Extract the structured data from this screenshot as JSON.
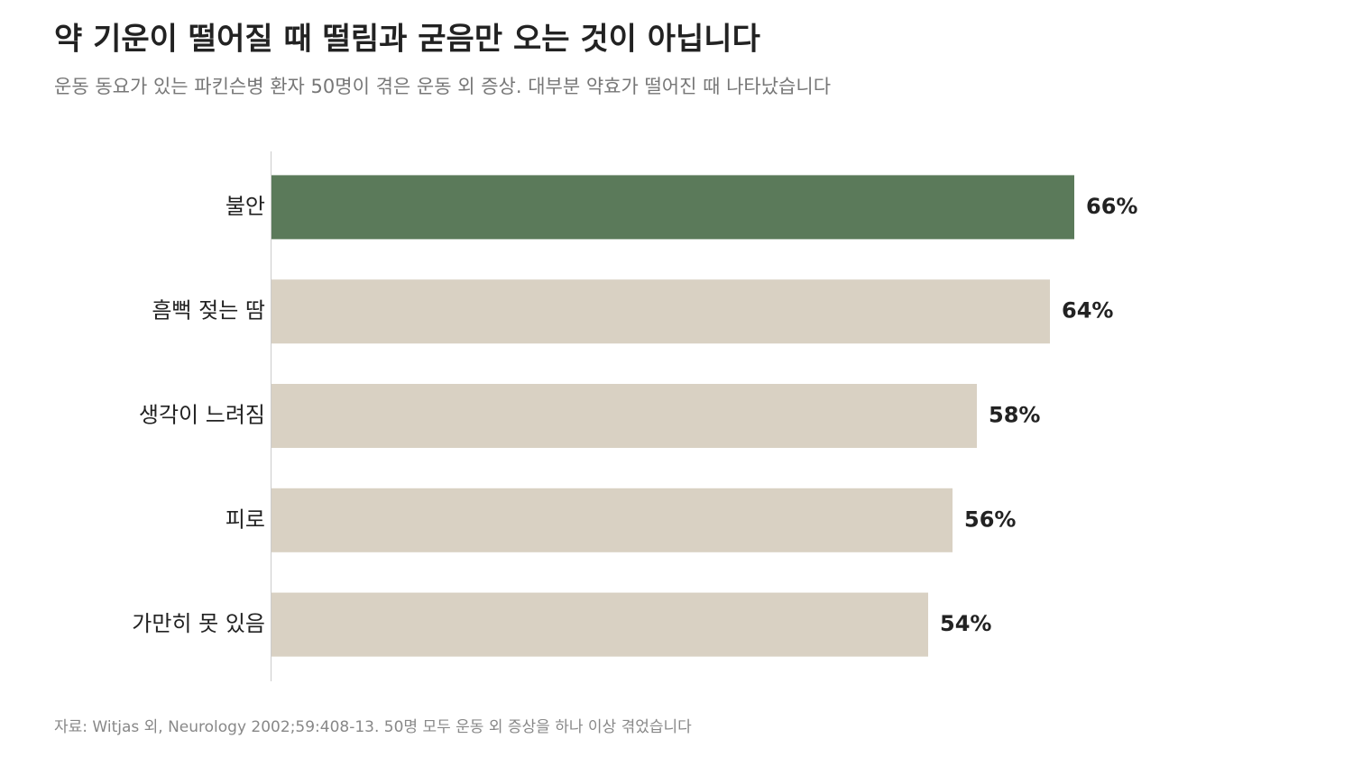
{
  "chart_data": {
    "type": "bar",
    "orientation": "horizontal",
    "title": "약 기운이 떨어질 때 떨림과 굳음만 오는 것이 아닙니다",
    "subtitle": "운동 동요가 있는 파킨슨병 환자 50명이 겪은 운동 외 증상. 대부분 약효가 떨어진 때 나타났습니다",
    "categories": [
      "불안",
      "흠뻑 젖는 땀",
      "생각이 느려짐",
      "피로",
      "가만히 못 있음"
    ],
    "values": [
      66,
      64,
      58,
      56,
      54
    ],
    "value_labels": [
      "66%",
      "64%",
      "58%",
      "56%",
      "54%"
    ],
    "colors": [
      "#5b7a5a",
      "#d9d1c3",
      "#d9d1c3",
      "#d9d1c3",
      "#d9d1c3"
    ],
    "source": "자료: Witjas 외, Neurology 2002;59:408-13. 50명 모두 운동 외 증상을 하나 이상 겪었습니다"
  }
}
